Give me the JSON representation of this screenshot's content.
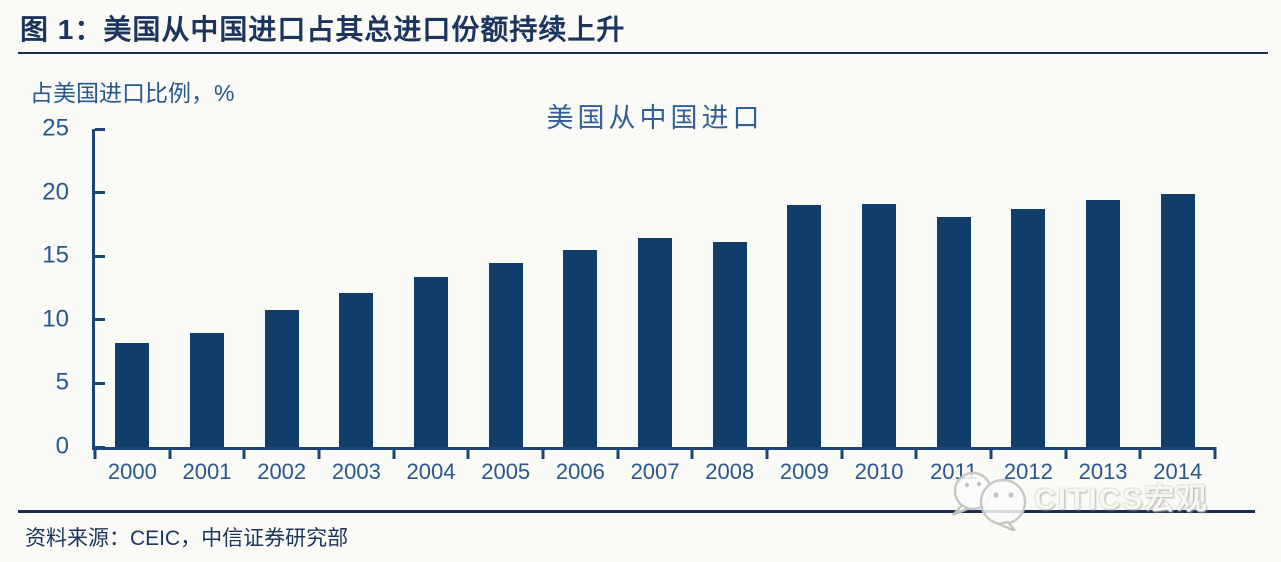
{
  "figure": {
    "title": "图 1：美国从中国进口占其总进口份额持续上升",
    "source_note": "资料来源：CEIC，中信证券研究部",
    "watermark_text": "CITICS宏观"
  },
  "colors": {
    "background": "#FAFAF7",
    "bar": "#123C6A",
    "axis_line": "#1B4676",
    "tick_label": "#27588E",
    "chart_title": "#2F5F9C",
    "heading_text": "#1B355E",
    "divider": "#1A2C52",
    "watermark_gray": "#C5C5C3"
  },
  "chart_data": {
    "type": "bar",
    "title": "美国从中国进口",
    "ylabel": "占美国进口比例，%",
    "xlabel": "",
    "categories": [
      "2000",
      "2001",
      "2002",
      "2003",
      "2004",
      "2005",
      "2006",
      "2007",
      "2008",
      "2009",
      "2010",
      "2011",
      "2012",
      "2013",
      "2014"
    ],
    "values": [
      8.2,
      9.0,
      10.8,
      12.1,
      13.4,
      14.5,
      15.5,
      16.4,
      16.1,
      19.0,
      19.1,
      18.1,
      18.7,
      19.4,
      19.9
    ],
    "ylim": [
      0,
      25
    ],
    "yticks": [
      0,
      5,
      10,
      15,
      20,
      25
    ],
    "grid": false,
    "legend": false
  }
}
